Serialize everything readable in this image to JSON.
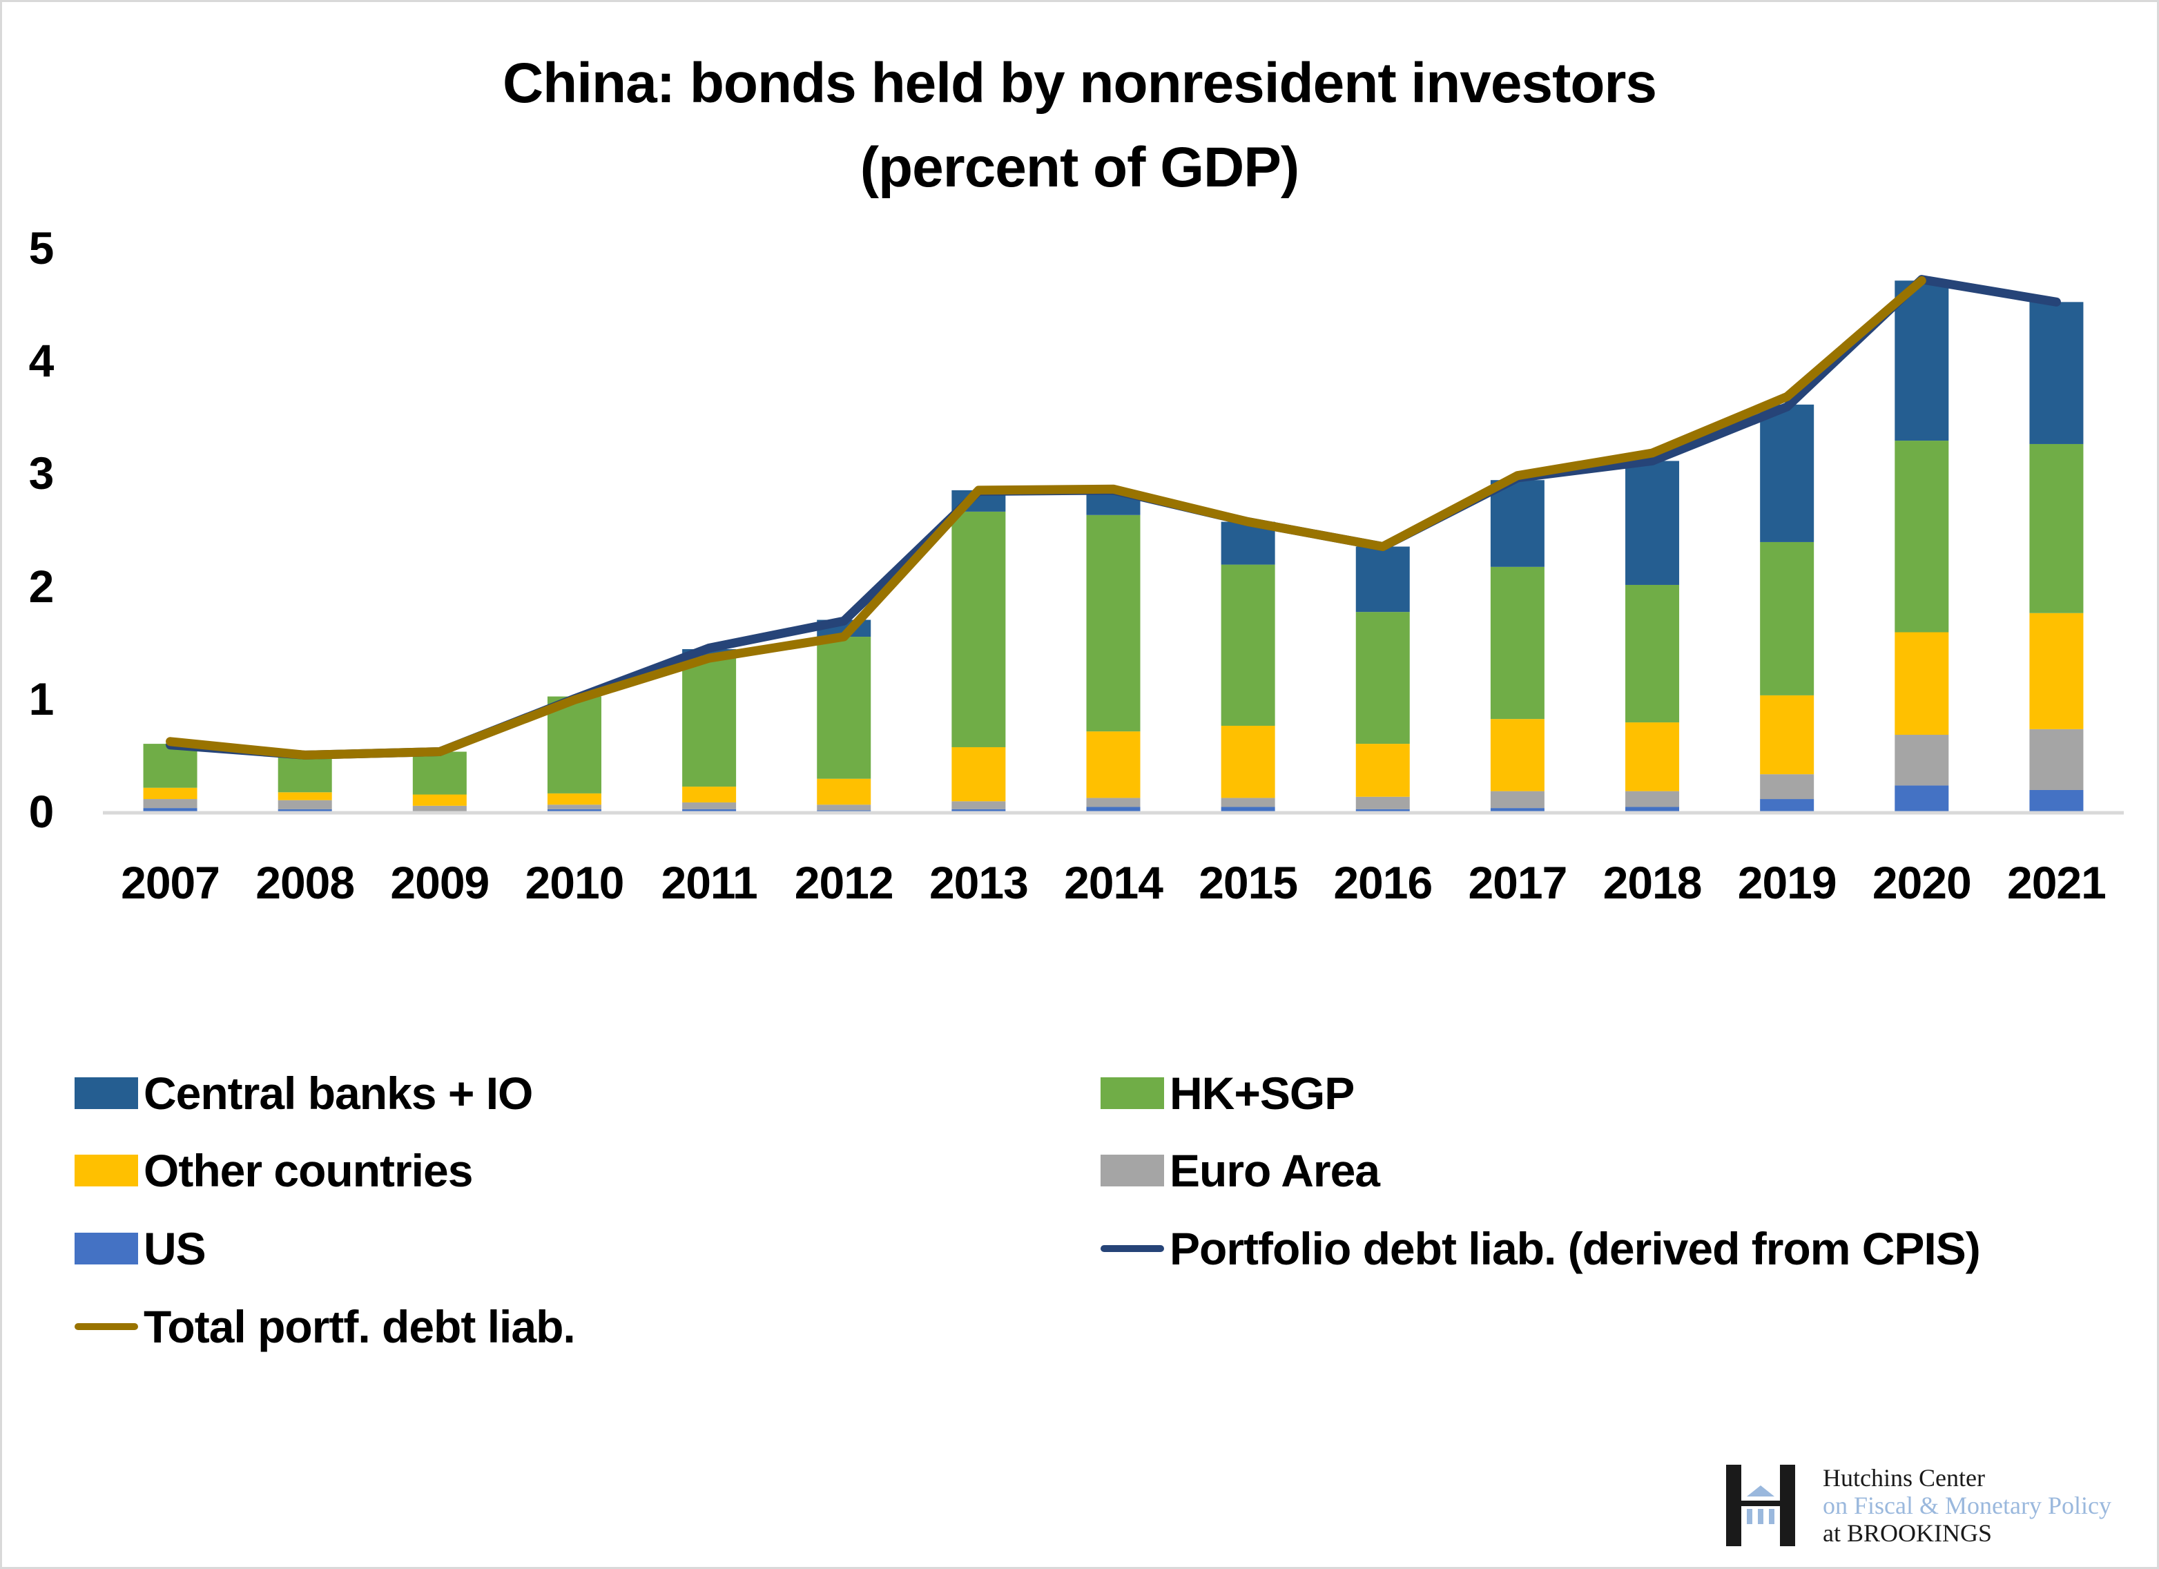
{
  "title": {
    "line1": "China: bonds held by nonresident investors",
    "line2": "(percent of GDP)"
  },
  "colors": {
    "central_banks_io": "#255e91",
    "hk_sgp": "#70ad47",
    "other_countries": "#ffc000",
    "euro_area": "#a5a5a5",
    "us": "#4472c4",
    "portfolio_cpis_line": "#264478",
    "total_portf_line": "#997300",
    "axis": "#d9d9d9"
  },
  "legend": [
    {
      "label": "Central banks + IO",
      "type": "swatch",
      "color": "#255e91"
    },
    {
      "label": "HK+SGP",
      "type": "swatch",
      "color": "#70ad47"
    },
    {
      "label": "Other countries",
      "type": "swatch",
      "color": "#ffc000"
    },
    {
      "label": "Euro Area",
      "type": "swatch",
      "color": "#a5a5a5"
    },
    {
      "label": "US",
      "type": "swatch",
      "color": "#4472c4"
    },
    {
      "label": "Portfolio debt liab. (derived from CPIS)",
      "type": "line",
      "color": "#264478"
    },
    {
      "label": "Total portf. debt liab.",
      "type": "line",
      "color": "#997300"
    }
  ],
  "logo": {
    "line1": "Hutchins Center",
    "line2": "on Fiscal & Monetary Policy",
    "line3": "at BROOKINGS"
  },
  "chart_data": {
    "type": "bar",
    "stacked": true,
    "title": "China: bonds held by nonresident investors (percent of GDP)",
    "xlabel": "",
    "ylabel": "",
    "ylim": [
      0,
      5
    ],
    "yticks": [
      0,
      1,
      2,
      3,
      4,
      5
    ],
    "grid": false,
    "legend_position": "bottom",
    "categories": [
      "2007",
      "2008",
      "2009",
      "2010",
      "2011",
      "2012",
      "2013",
      "2014",
      "2015",
      "2016",
      "2017",
      "2018",
      "2019",
      "2020",
      "2021"
    ],
    "series": [
      {
        "name": "US",
        "type": "bar",
        "color": "#4472c4",
        "values": [
          0.03,
          0.02,
          0.0,
          0.02,
          0.02,
          0.01,
          0.02,
          0.04,
          0.04,
          0.02,
          0.03,
          0.04,
          0.11,
          0.23,
          0.19
        ]
      },
      {
        "name": "Euro Area",
        "type": "bar",
        "color": "#a5a5a5",
        "values": [
          0.08,
          0.08,
          0.05,
          0.04,
          0.06,
          0.05,
          0.07,
          0.08,
          0.08,
          0.11,
          0.15,
          0.14,
          0.22,
          0.45,
          0.54
        ]
      },
      {
        "name": "Other countries",
        "type": "bar",
        "color": "#ffc000",
        "values": [
          0.1,
          0.07,
          0.1,
          0.1,
          0.14,
          0.23,
          0.48,
          0.59,
          0.64,
          0.47,
          0.64,
          0.61,
          0.7,
          0.91,
          1.03
        ]
      },
      {
        "name": "HK+SGP",
        "type": "bar",
        "color": "#70ad47",
        "values": [
          0.39,
          0.31,
          0.38,
          0.86,
          1.16,
          1.26,
          2.09,
          1.92,
          1.43,
          1.17,
          1.35,
          1.22,
          1.36,
          1.7,
          1.5
        ]
      },
      {
        "name": "Central banks + IO",
        "type": "bar",
        "color": "#255e91",
        "values": [
          0.0,
          0.0,
          0.0,
          0.0,
          0.06,
          0.15,
          0.19,
          0.21,
          0.38,
          0.58,
          0.77,
          1.1,
          1.22,
          1.42,
          1.26
        ]
      },
      {
        "name": "Portfolio debt liab. (derived from CPIS)",
        "type": "line",
        "color": "#264478",
        "values": [
          0.59,
          0.5,
          0.53,
          1.0,
          1.45,
          1.69,
          2.84,
          2.85,
          2.57,
          2.35,
          2.96,
          3.11,
          3.59,
          4.72,
          4.52
        ]
      },
      {
        "name": "Total portf. debt liab.",
        "type": "line",
        "color": "#997300",
        "values": [
          0.62,
          0.5,
          0.53,
          0.99,
          1.36,
          1.55,
          2.85,
          2.86,
          2.57,
          2.35,
          2.98,
          3.18,
          3.68,
          4.71,
          null
        ]
      }
    ]
  }
}
